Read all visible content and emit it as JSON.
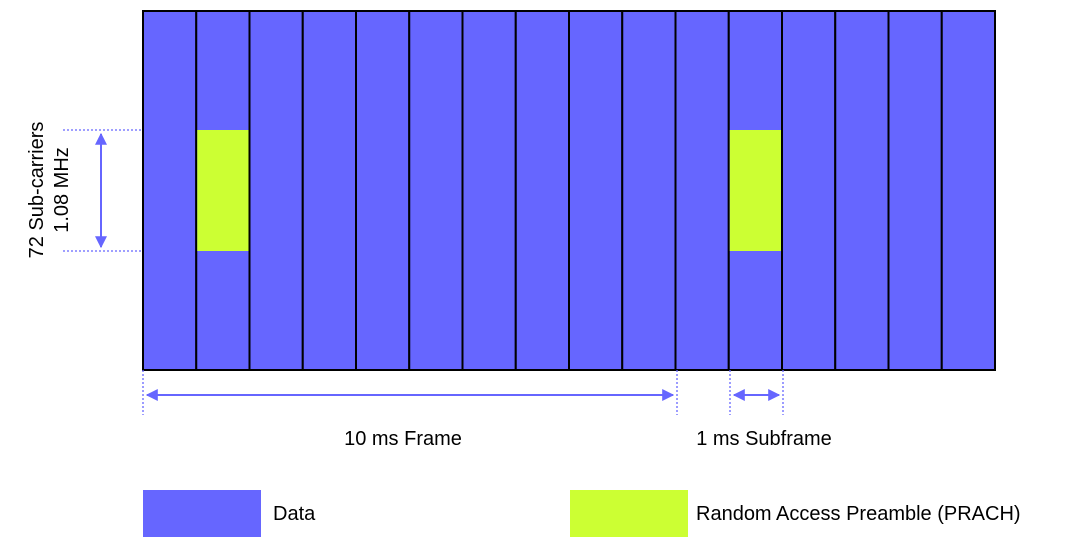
{
  "labels": {
    "freq_subcarriers": "72 Sub-carriers",
    "freq_bandwidth": "1.08 MHz",
    "frame_label": "10 ms Frame",
    "subframe_label": "1 ms Subframe"
  },
  "legend": [
    {
      "label": "Data",
      "color": "#6666ff"
    },
    {
      "label": "Random Access Preamble (PRACH)",
      "color": "#ccff33"
    }
  ],
  "colors": {
    "data": "#6666ff",
    "prach": "#ccff33",
    "border": "#000000",
    "annotation": "#6666ff"
  },
  "grid": {
    "subframe_count": 16,
    "prach_subframes": [
      1,
      11
    ]
  }
}
